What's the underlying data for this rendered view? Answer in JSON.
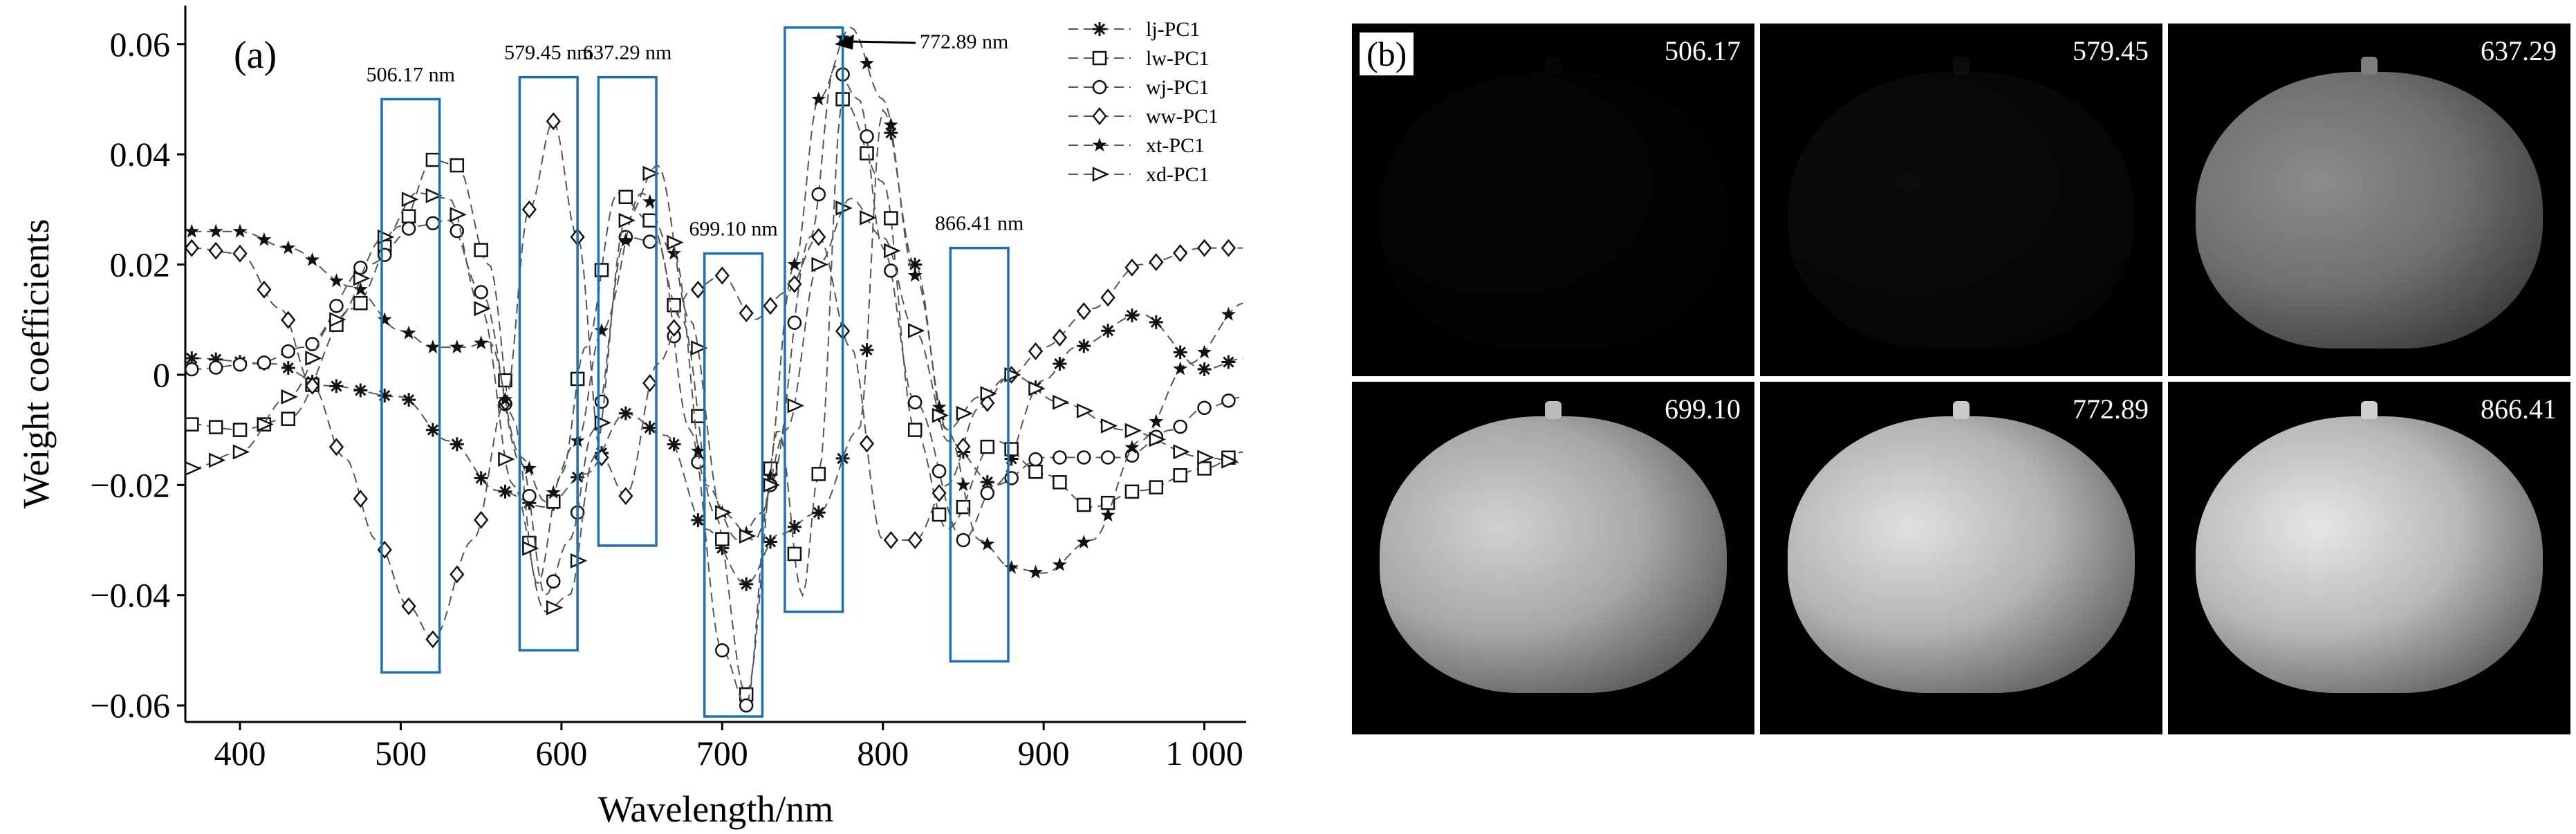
{
  "chart_data": {
    "type": "line",
    "panel_label": "(a)",
    "title": "",
    "xlabel": "Wavelength/nm",
    "ylabel": "Weight coefficients",
    "xlim": [
      366,
      1026
    ],
    "ylim": [
      -0.063,
      0.067
    ],
    "xticks": [
      400,
      500,
      600,
      700,
      800,
      900,
      1000
    ],
    "xtick_labels": [
      "400",
      "500",
      "600",
      "700",
      "800",
      "900",
      "1 000"
    ],
    "yticks": [
      -0.06,
      -0.04,
      -0.02,
      0,
      0.02,
      0.04,
      0.06
    ],
    "ytick_labels": [
      "−0.06",
      "−0.04",
      "−0.02",
      "0",
      "0.02",
      "0.04",
      "0.06"
    ],
    "grid": false,
    "legend_position": "top-right",
    "series": [
      {
        "name": "lj-PC1",
        "marker": "asterisk",
        "points": [
          [
            370,
            0.003
          ],
          [
            420,
            0.002
          ],
          [
            455,
            -0.002
          ],
          [
            500,
            -0.004
          ],
          [
            530,
            -0.012
          ],
          [
            560,
            -0.021
          ],
          [
            590,
            -0.024
          ],
          [
            615,
            -0.018
          ],
          [
            640,
            -0.007
          ],
          [
            665,
            -0.011
          ],
          [
            690,
            -0.028
          ],
          [
            715,
            -0.038
          ],
          [
            735,
            -0.029
          ],
          [
            760,
            -0.025
          ],
          [
            785,
            -0.01
          ],
          [
            800,
            0.048
          ],
          [
            820,
            0.02
          ],
          [
            840,
            -0.012
          ],
          [
            870,
            -0.02
          ],
          [
            900,
            -0.001
          ],
          [
            920,
            0.005
          ],
          [
            960,
            0.011
          ],
          [
            1000,
            0.001
          ],
          [
            1025,
            0.003
          ]
        ]
      },
      {
        "name": "lw-PC1",
        "marker": "square",
        "points": [
          [
            370,
            -0.009
          ],
          [
            400,
            -0.01
          ],
          [
            430,
            -0.008
          ],
          [
            470,
            0.012
          ],
          [
            500,
            0.027
          ],
          [
            520,
            0.039
          ],
          [
            535,
            0.038
          ],
          [
            555,
            0.02
          ],
          [
            570,
            -0.008
          ],
          [
            585,
            -0.038
          ],
          [
            600,
            -0.018
          ],
          [
            615,
            0.005
          ],
          [
            635,
            0.033
          ],
          [
            655,
            0.028
          ],
          [
            675,
            0.01
          ],
          [
            695,
            -0.025
          ],
          [
            715,
            -0.058
          ],
          [
            735,
            -0.01
          ],
          [
            750,
            -0.04
          ],
          [
            760,
            -0.018
          ],
          [
            775,
            0.05
          ],
          [
            800,
            0.035
          ],
          [
            820,
            -0.01
          ],
          [
            840,
            -0.028
          ],
          [
            870,
            -0.012
          ],
          [
            900,
            -0.018
          ],
          [
            930,
            -0.024
          ],
          [
            960,
            -0.021
          ],
          [
            1000,
            -0.017
          ],
          [
            1025,
            -0.014
          ]
        ]
      },
      {
        "name": "wj-PC1",
        "marker": "circle",
        "points": [
          [
            370,
            0.001
          ],
          [
            410,
            0.002
          ],
          [
            440,
            0.005
          ],
          [
            480,
            0.02
          ],
          [
            510,
            0.027
          ],
          [
            530,
            0.028
          ],
          [
            550,
            0.015
          ],
          [
            575,
            -0.016
          ],
          [
            590,
            -0.04
          ],
          [
            605,
            -0.03
          ],
          [
            620,
            -0.01
          ],
          [
            640,
            0.025
          ],
          [
            660,
            0.024
          ],
          [
            680,
            -0.01
          ],
          [
            700,
            -0.05
          ],
          [
            715,
            -0.06
          ],
          [
            730,
            -0.02
          ],
          [
            755,
            0.025
          ],
          [
            770,
            0.056
          ],
          [
            785,
            0.05
          ],
          [
            800,
            0.023
          ],
          [
            820,
            -0.005
          ],
          [
            850,
            -0.03
          ],
          [
            870,
            -0.02
          ],
          [
            900,
            -0.015
          ],
          [
            950,
            -0.015
          ],
          [
            980,
            -0.01
          ],
          [
            1000,
            -0.006
          ],
          [
            1025,
            -0.004
          ]
        ]
      },
      {
        "name": "ww-PC1",
        "marker": "diamond",
        "points": [
          [
            370,
            0.023
          ],
          [
            400,
            0.022
          ],
          [
            425,
            0.012
          ],
          [
            445,
            -0.002
          ],
          [
            465,
            -0.015
          ],
          [
            485,
            -0.03
          ],
          [
            505,
            -0.042
          ],
          [
            520,
            -0.048
          ],
          [
            545,
            -0.03
          ],
          [
            565,
            -0.005
          ],
          [
            580,
            0.03
          ],
          [
            595,
            0.046
          ],
          [
            610,
            0.025
          ],
          [
            625,
            -0.015
          ],
          [
            640,
            -0.022
          ],
          [
            660,
            0.002
          ],
          [
            680,
            0.015
          ],
          [
            700,
            0.018
          ],
          [
            720,
            0.01
          ],
          [
            740,
            0.015
          ],
          [
            760,
            0.025
          ],
          [
            780,
            0.005
          ],
          [
            800,
            -0.03
          ],
          [
            820,
            -0.03
          ],
          [
            840,
            -0.02
          ],
          [
            860,
            -0.006
          ],
          [
            880,
            0.0
          ],
          [
            900,
            0.005
          ],
          [
            930,
            0.012
          ],
          [
            960,
            0.02
          ],
          [
            1000,
            0.023
          ],
          [
            1025,
            0.023
          ]
        ]
      },
      {
        "name": "xt-PC1",
        "marker": "star",
        "points": [
          [
            370,
            0.026
          ],
          [
            400,
            0.026
          ],
          [
            430,
            0.023
          ],
          [
            470,
            0.016
          ],
          [
            500,
            0.008
          ],
          [
            520,
            0.005
          ],
          [
            540,
            0.005
          ],
          [
            555,
            0.006
          ],
          [
            575,
            -0.015
          ],
          [
            590,
            -0.023
          ],
          [
            610,
            -0.012
          ],
          [
            625,
            0.008
          ],
          [
            650,
            0.033
          ],
          [
            670,
            0.022
          ],
          [
            690,
            -0.02
          ],
          [
            710,
            -0.03
          ],
          [
            725,
            -0.025
          ],
          [
            745,
            0.02
          ],
          [
            760,
            0.05
          ],
          [
            780,
            0.063
          ],
          [
            800,
            0.05
          ],
          [
            820,
            0.018
          ],
          [
            840,
            -0.01
          ],
          [
            860,
            -0.03
          ],
          [
            880,
            -0.035
          ],
          [
            900,
            -0.036
          ],
          [
            930,
            -0.03
          ],
          [
            960,
            -0.012
          ],
          [
            990,
            0.002
          ],
          [
            1025,
            0.013
          ]
        ]
      },
      {
        "name": "xd-PC1",
        "marker": "triangle",
        "points": [
          [
            370,
            -0.017
          ],
          [
            400,
            -0.014
          ],
          [
            430,
            -0.004
          ],
          [
            460,
            0.01
          ],
          [
            490,
            0.025
          ],
          [
            510,
            0.033
          ],
          [
            530,
            0.032
          ],
          [
            550,
            0.012
          ],
          [
            570,
            -0.02
          ],
          [
            590,
            -0.043
          ],
          [
            605,
            -0.04
          ],
          [
            620,
            -0.015
          ],
          [
            640,
            0.028
          ],
          [
            660,
            0.038
          ],
          [
            680,
            0.01
          ],
          [
            700,
            -0.025
          ],
          [
            720,
            -0.03
          ],
          [
            740,
            -0.01
          ],
          [
            760,
            0.02
          ],
          [
            780,
            0.032
          ],
          [
            800,
            0.025
          ],
          [
            820,
            0.008
          ],
          [
            840,
            -0.01
          ],
          [
            860,
            -0.004
          ],
          [
            880,
            0.0
          ],
          [
            910,
            -0.005
          ],
          [
            950,
            -0.01
          ],
          [
            1000,
            -0.015
          ],
          [
            1025,
            -0.016
          ]
        ]
      }
    ],
    "highlight_boxes": [
      {
        "label": "506.17 nm",
        "center": 506.17,
        "half_width": 18,
        "ymin": -0.054,
        "ymax": 0.05
      },
      {
        "label": "579.45 nm",
        "center": 592,
        "half_width": 18,
        "ymin": -0.05,
        "ymax": 0.054
      },
      {
        "label": "637.29 nm",
        "center": 641,
        "half_width": 18,
        "ymin": -0.031,
        "ymax": 0.054
      },
      {
        "label": "699.10 nm",
        "center": 707,
        "half_width": 18,
        "ymin": -0.062,
        "ymax": 0.022
      },
      {
        "label": "772.89 nm",
        "center": 757,
        "half_width": 18,
        "ymin": -0.043,
        "ymax": 0.063
      },
      {
        "label": "866.41 nm",
        "center": 860,
        "half_width": 18,
        "ymin": -0.052,
        "ymax": 0.023
      }
    ],
    "annotation": {
      "text": "772.89 nm",
      "target_x": 770,
      "target_y": 0.061
    }
  },
  "panel_b": {
    "panel_label": "(b)",
    "tiles": [
      {
        "label": "506.17",
        "brightness": 0.05
      },
      {
        "label": "579.45",
        "brightness": 0.12
      },
      {
        "label": "637.29",
        "brightness": 0.55
      },
      {
        "label": "699.10",
        "brightness": 0.82
      },
      {
        "label": "772.89",
        "brightness": 0.88
      },
      {
        "label": "866.41",
        "brightness": 0.9
      }
    ]
  },
  "colors": {
    "box": "#1f6fb5",
    "line": "#555555",
    "marker": "#111111"
  }
}
